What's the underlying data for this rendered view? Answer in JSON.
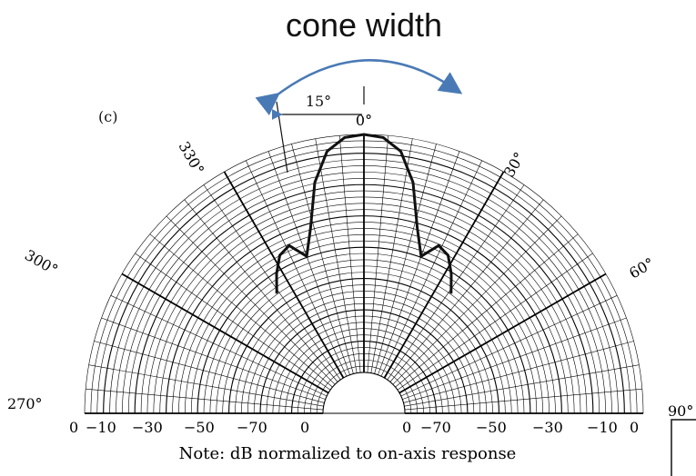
{
  "annotation": {
    "title": "cone width",
    "angle_label": "15°",
    "arrow_color": "#4a7ab5"
  },
  "panel_label": "(c)",
  "polar_chart": {
    "type": "polar-half",
    "angle_labels": [
      "0°",
      "30°",
      "60°",
      "90°",
      "270°",
      "300°",
      "330°"
    ],
    "left_scale_labels": [
      "0",
      "−10",
      "−30",
      "−50",
      "−70",
      "0"
    ],
    "right_scale_labels": [
      "0",
      "−70",
      "−50",
      "−30",
      "−10",
      "0"
    ],
    "note": "Note: dB normalized to on-axis response",
    "grid_color": "#000000"
  },
  "chart_data": {
    "type": "polar",
    "angle_unit": "deg",
    "pattern": {
      "angles": [
        -36,
        -32,
        -28,
        -24,
        -20,
        -16,
        -12,
        -8,
        -4,
        0,
        4,
        8,
        12,
        16,
        20,
        24,
        28,
        32,
        36
      ],
      "relative_level": [
        0.45,
        0.52,
        0.58,
        0.6,
        0.53,
        0.64,
        0.82,
        0.94,
        0.99,
        1.0,
        0.99,
        0.94,
        0.82,
        0.64,
        0.53,
        0.6,
        0.58,
        0.52,
        0.45
      ]
    }
  }
}
